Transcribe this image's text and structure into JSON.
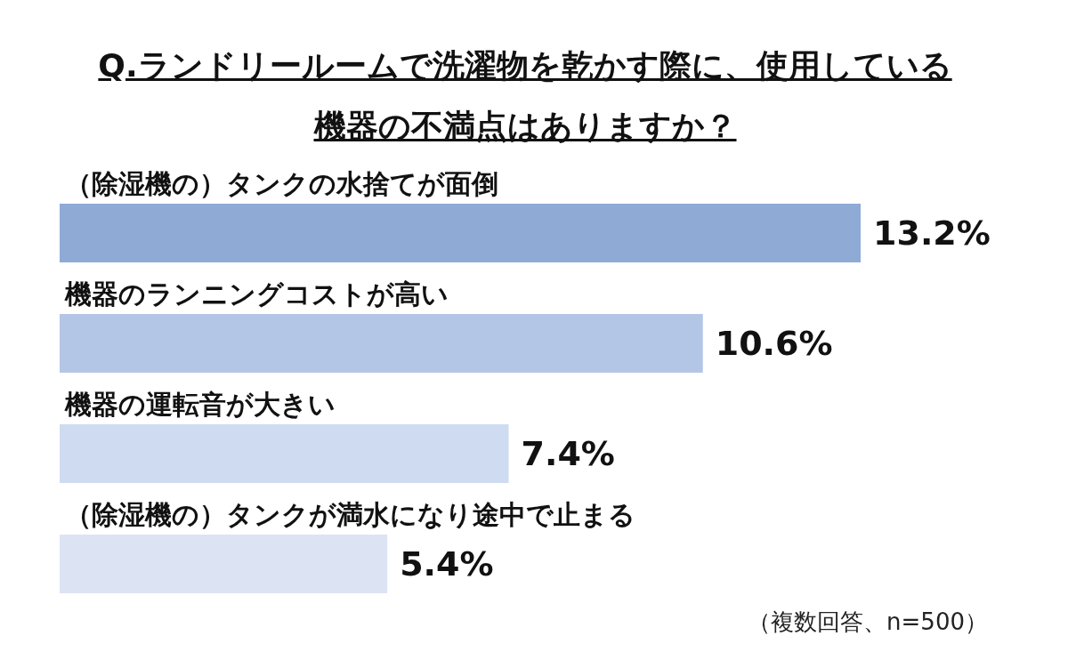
{
  "chart_data": {
    "type": "bar",
    "orientation": "horizontal",
    "title": "Q.ランドリールームで洗濯物を乾かす際に、使用している機器の不満点はありますか？",
    "categories": [
      "（除湿機の）タンクの水捨てが面倒",
      "機器のランニングコストが高い",
      "機器の運転音が大きい",
      "（除湿機の）タンクが満水になり途中で止まる"
    ],
    "values": [
      13.2,
      10.6,
      7.4,
      5.4
    ],
    "colors": [
      "#8eaad5",
      "#b4c6e6",
      "#cfdbf0",
      "#dce4f3"
    ],
    "value_labels": [
      "13.2%",
      "10.6%",
      "7.4%",
      "5.4%"
    ],
    "annotations": [
      "（複数回答、n=500）"
    ]
  }
}
